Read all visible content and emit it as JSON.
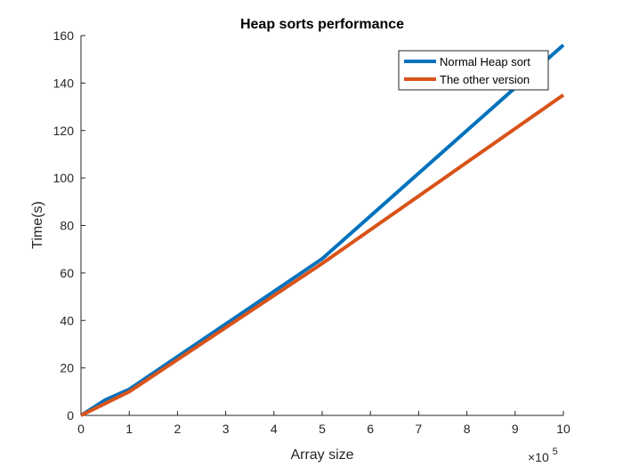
{
  "chart_data": {
    "type": "line",
    "title": "Heap sorts performance",
    "xlabel": "Array size",
    "ylabel": "Time(s)",
    "x_exponent_label": {
      "base": "×10",
      "exponent": "5"
    },
    "xlim": [
      0,
      10
    ],
    "ylim": [
      0,
      160
    ],
    "x_ticks": [
      0,
      1,
      2,
      3,
      4,
      5,
      6,
      7,
      8,
      9,
      10
    ],
    "y_ticks": [
      0,
      20,
      40,
      60,
      80,
      100,
      120,
      140,
      160
    ],
    "x": [
      0,
      0.5,
      1,
      5,
      10
    ],
    "series": [
      {
        "name": "Normal Heap sort",
        "color": "#0072BD",
        "values": [
          0,
          6.5,
          11,
          66,
          156
        ]
      },
      {
        "name": "The other version",
        "color": "#D95319",
        "values": [
          0,
          5,
          10,
          64,
          135
        ]
      }
    ],
    "grid": false,
    "legend_position": "top-right"
  }
}
